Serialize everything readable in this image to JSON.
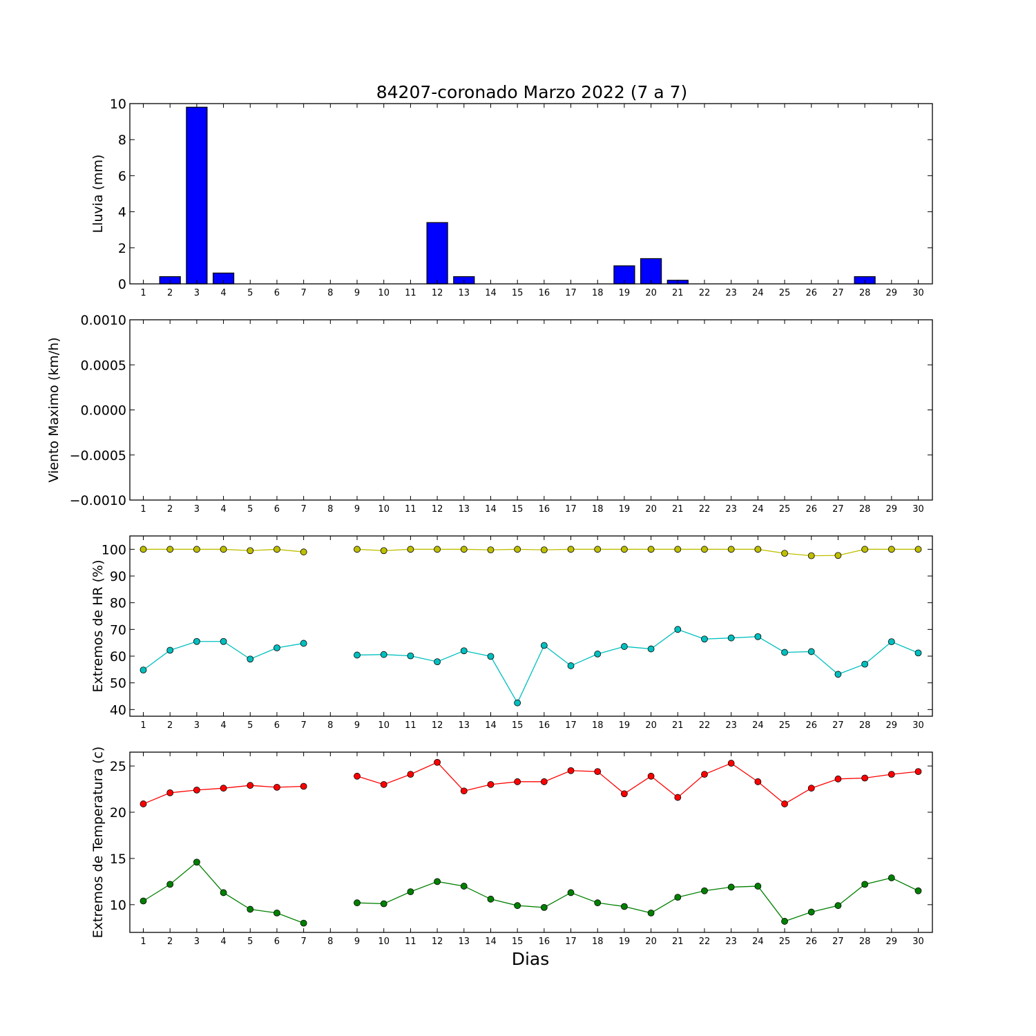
{
  "title": "84207-coronado Marzo 2022  (7 a 7)",
  "xlabel": "Dias",
  "days": [
    1,
    2,
    3,
    4,
    5,
    6,
    7,
    8,
    9,
    10,
    11,
    12,
    13,
    14,
    15,
    16,
    17,
    18,
    19,
    20,
    21,
    22,
    23,
    24,
    25,
    26,
    27,
    28,
    29,
    30
  ],
  "chart_data": [
    {
      "type": "bar",
      "ylabel": "Lluvia (mm)",
      "ylim": [
        0,
        10
      ],
      "yticks": [
        0,
        2,
        4,
        6,
        8,
        10
      ],
      "ytick_labels": [
        "0",
        "2",
        "4",
        "6",
        "8",
        "10"
      ],
      "series": [
        {
          "color": "#0000ff",
          "values": [
            0,
            0.4,
            9.8,
            0.6,
            0,
            0,
            0,
            0,
            0,
            0,
            0,
            3.4,
            0.4,
            0,
            0,
            0,
            0,
            0,
            1.0,
            1.4,
            0.2,
            0,
            0,
            0,
            0,
            0,
            0,
            0.4,
            0,
            0
          ]
        }
      ]
    },
    {
      "type": "line",
      "ylabel": "Viento Maximo (km/h)",
      "ylim": [
        -0.001,
        0.001
      ],
      "yticks": [
        -0.001,
        -0.0005,
        0,
        0.0005,
        0.001
      ],
      "ytick_labels": [
        "−0.0010",
        "−0.0005",
        "0.0000",
        "0.0005",
        "0.0010"
      ],
      "series": []
    },
    {
      "type": "line",
      "ylabel": "Extremos de HR (%)",
      "ylim": [
        37.5,
        105
      ],
      "yticks": [
        40,
        50,
        60,
        70,
        80,
        90,
        100
      ],
      "ytick_labels": [
        "40",
        "50",
        "60",
        "70",
        "80",
        "90",
        "100"
      ],
      "series": [
        {
          "color": "#bfbf00",
          "values": [
            100,
            100,
            100,
            100,
            99.5,
            100,
            99,
            null,
            100,
            99.5,
            100,
            100,
            100,
            99.8,
            100,
            99.8,
            100,
            100,
            100,
            100,
            100,
            100,
            100,
            100,
            98.5,
            97.6,
            97.7,
            100,
            100,
            100
          ]
        },
        {
          "color": "#00bfbf",
          "values": [
            54.8,
            62.2,
            65.5,
            65.5,
            58.9,
            63.1,
            64.8,
            null,
            60.4,
            60.6,
            60.1,
            57.9,
            62.0,
            59.9,
            42.5,
            64.0,
            56.4,
            60.8,
            63.6,
            62.7,
            70.0,
            66.4,
            66.8,
            67.3,
            61.4,
            61.7,
            53.2,
            57.0,
            65.4,
            61.2
          ]
        }
      ]
    },
    {
      "type": "line",
      "ylabel": "Extremos de Temperatura (c)",
      "ylim": [
        7,
        26.5
      ],
      "yticks": [
        10,
        15,
        20,
        25
      ],
      "ytick_labels": [
        "10",
        "15",
        "20",
        "25"
      ],
      "series": [
        {
          "color": "#ff0000",
          "values": [
            20.9,
            22.1,
            22.4,
            22.6,
            22.9,
            22.7,
            22.8,
            null,
            23.9,
            23.0,
            24.1,
            25.4,
            22.3,
            23.0,
            23.3,
            23.3,
            24.5,
            24.4,
            22.0,
            23.9,
            21.6,
            24.1,
            25.3,
            23.3,
            20.9,
            22.6,
            23.6,
            23.7,
            24.1,
            24.4
          ]
        },
        {
          "color": "#008000",
          "values": [
            10.4,
            12.2,
            14.6,
            11.3,
            9.5,
            9.1,
            8.0,
            null,
            10.2,
            10.1,
            11.4,
            12.5,
            12.0,
            10.6,
            9.9,
            9.7,
            11.3,
            10.2,
            9.8,
            9.1,
            10.8,
            11.5,
            11.9,
            12.0,
            8.2,
            9.2,
            9.9,
            12.2,
            12.9,
            11.5
          ]
        }
      ]
    }
  ]
}
